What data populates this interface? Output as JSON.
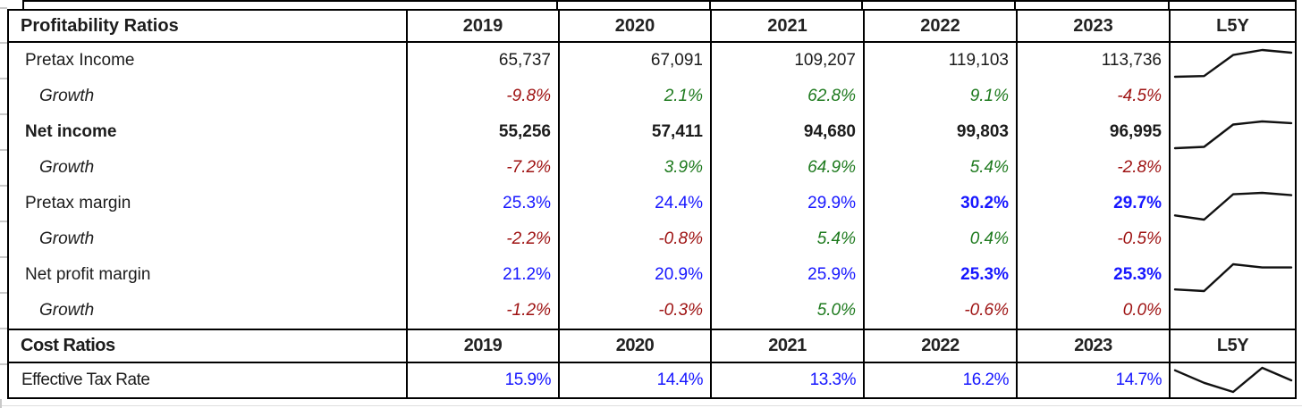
{
  "colors": {
    "negative_red": "#9e1212",
    "positive_green": "#1e7a1e",
    "ratio_blue": "#1717ff",
    "text_black": "#1c1c1c",
    "border_black": "#000000",
    "gridline_gray": "#c9c9c9"
  },
  "table": {
    "sections": [
      {
        "title": "Profitability Ratios",
        "years": [
          "2019",
          "2020",
          "2021",
          "2022",
          "2023"
        ],
        "spark_header": "L5Y",
        "rows": [
          {
            "label": "Pretax Income",
            "values": [
              "65,737",
              "67,091",
              "109,207",
              "119,103",
              "113,736"
            ],
            "cls": [
              "",
              "",
              "",
              "",
              ""
            ]
          },
          {
            "label": "Growth",
            "values": [
              "-9.8%",
              "2.1%",
              "62.8%",
              "9.1%",
              "-4.5%"
            ],
            "cls": [
              "neg",
              "pos",
              "pos",
              "pos",
              "neg"
            ]
          },
          {
            "label": "Net income",
            "values": [
              "55,256",
              "57,411",
              "94,680",
              "99,803",
              "96,995"
            ],
            "cls": [
              "",
              "",
              "",
              "",
              ""
            ]
          },
          {
            "label": "Growth",
            "values": [
              "-7.2%",
              "3.9%",
              "64.9%",
              "5.4%",
              "-2.8%"
            ],
            "cls": [
              "neg",
              "pos",
              "pos",
              "pos",
              "neg"
            ]
          },
          {
            "label": "Pretax margin",
            "values": [
              "25.3%",
              "24.4%",
              "29.9%",
              "30.2%",
              "29.7%"
            ],
            "cls": [
              "",
              "",
              "",
              "strong",
              "strong"
            ]
          },
          {
            "label": "Growth",
            "values": [
              "-2.2%",
              "-0.8%",
              "5.4%",
              "0.4%",
              "-0.5%"
            ],
            "cls": [
              "neg",
              "neg",
              "pos",
              "pos",
              "neg"
            ]
          },
          {
            "label": "Net profit margin",
            "values": [
              "21.2%",
              "20.9%",
              "25.9%",
              "25.3%",
              "25.3%"
            ],
            "cls": [
              "",
              "",
              "",
              "strong",
              "strong"
            ]
          },
          {
            "label": "Growth",
            "values": [
              "-1.2%",
              "-0.3%",
              "5.0%",
              "-0.6%",
              "0.0%"
            ],
            "cls": [
              "neg",
              "neg",
              "pos",
              "neg",
              "neg"
            ]
          }
        ]
      },
      {
        "title": "Cost Ratios",
        "years": [
          "2019",
          "2020",
          "2021",
          "2022",
          "2023"
        ],
        "spark_header": "L5Y",
        "rows": [
          {
            "label": "Effective Tax Rate",
            "values": [
              "15.9%",
              "14.4%",
              "13.3%",
              "16.2%",
              "14.7%"
            ],
            "cls": [
              "",
              "",
              "",
              "",
              ""
            ]
          }
        ]
      }
    ]
  },
  "chart_data": [
    {
      "type": "line",
      "name": "Pretax Income L5Y sparkline",
      "x": [
        "2019",
        "2020",
        "2021",
        "2022",
        "2023"
      ],
      "y": [
        65737,
        67091,
        109207,
        119103,
        113736
      ],
      "legend_position": "none",
      "grid": false
    },
    {
      "type": "line",
      "name": "Net income L5Y sparkline",
      "x": [
        "2019",
        "2020",
        "2021",
        "2022",
        "2023"
      ],
      "y": [
        55256,
        57411,
        94680,
        99803,
        96995
      ],
      "legend_position": "none",
      "grid": false
    },
    {
      "type": "line",
      "name": "Pretax margin L5Y sparkline",
      "x": [
        "2019",
        "2020",
        "2021",
        "2022",
        "2023"
      ],
      "y": [
        25.3,
        24.4,
        29.9,
        30.2,
        29.7
      ],
      "legend_position": "none",
      "grid": false
    },
    {
      "type": "line",
      "name": "Net profit margin L5Y sparkline",
      "x": [
        "2019",
        "2020",
        "2021",
        "2022",
        "2023"
      ],
      "y": [
        21.2,
        20.9,
        25.9,
        25.3,
        25.3
      ],
      "legend_position": "none",
      "grid": false
    },
    {
      "type": "line",
      "name": "Effective Tax Rate L5Y sparkline",
      "x": [
        "2019",
        "2020",
        "2021",
        "2022",
        "2023"
      ],
      "y": [
        15.9,
        14.4,
        13.3,
        16.2,
        14.7
      ],
      "legend_position": "none",
      "grid": false
    }
  ]
}
